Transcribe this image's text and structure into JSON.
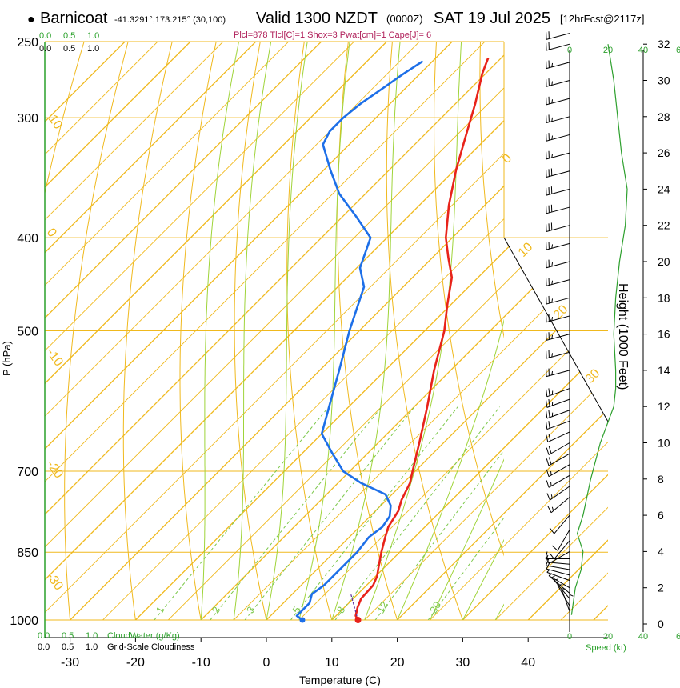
{
  "header": {
    "bullet": "●",
    "station": "Barnicoat",
    "coords": "-41.3291°,173.215° (30,100)",
    "valid": "Valid 1300 NZDT",
    "zulu": "(0000Z)",
    "date": "SAT 19 Jul 2025",
    "forecast": "[12hrFcst@2117z]",
    "indices": "Plcl=878 Tlcl[C]=1 Shox=3 Pwat[cm]=1 Cape[J]= 6"
  },
  "colors": {
    "temperature": "#e8231a",
    "dewpoint": "#1d6fe8",
    "isotherm": "#f0b91e",
    "moist_adiabat": "#9fd43a",
    "mixing_ratio": "#7cc84a",
    "green_text": "#2aa12a",
    "indices": "#b0205a",
    "wind_speed": "#2ea02e"
  },
  "chart_data": {
    "type": "line",
    "title": "Skew-T log-P sounding",
    "xlabel": "Temperature (C)",
    "ylabel": "P (hPa)",
    "y2label": "Height (1000 Feet)",
    "xlim": [
      -35,
      52
    ],
    "ylim_hpa": [
      1000,
      250
    ],
    "x_ticks": [
      "-30",
      "-20",
      "-10",
      "0",
      "10",
      "20",
      "30",
      "40"
    ],
    "x_tick_values": [
      -30,
      -20,
      -10,
      0,
      10,
      20,
      30,
      40
    ],
    "y_ticks": [
      "1000",
      "850",
      "700",
      "500",
      "400",
      "300",
      "250"
    ],
    "y_tick_values": [
      1000,
      850,
      700,
      500,
      400,
      300,
      250
    ],
    "height_ticks": [
      "0",
      "2",
      "4",
      "6",
      "8",
      "10",
      "12",
      "14",
      "16",
      "18",
      "20",
      "22",
      "24",
      "26",
      "28",
      "30",
      "32"
    ],
    "isotherm_labels": [
      "10",
      "0",
      "-10",
      "-20",
      "-30",
      "0",
      "10",
      "20",
      "30"
    ],
    "mixing_ratio_labels": [
      "1",
      "2",
      "3",
      "5",
      "8",
      "12",
      "20"
    ],
    "cloud_top_scale": [
      "0.0",
      "0.5",
      "1.0"
    ],
    "cloud_top_scale_black": [
      "0.0",
      "0.5",
      "1.0"
    ],
    "cloudwater_label": "CloudWater (g/Kg)",
    "cloudwater_ticks": [
      "0.0",
      "0.5",
      "1.0"
    ],
    "cloudiness_label": "Grid-Scale Cloudiness",
    "cloudiness_ticks": [
      "0.0",
      "0.5",
      "1.0"
    ],
    "speed_label": "Speed (kt)",
    "speed_ticks": [
      "0",
      "20",
      "40",
      "6"
    ],
    "series": [
      {
        "name": "Temperature",
        "pressure_hpa": [
          1000,
          990,
          970,
          950,
          920,
          900,
          880,
          850,
          820,
          800,
          770,
          750,
          720,
          700,
          650,
          600,
          550,
          500,
          470,
          440,
          420,
          400,
          370,
          340,
          310,
          290,
          270,
          260
        ],
        "temp_c": [
          14.0,
          13.0,
          12.0,
          11.2,
          11.0,
          10.2,
          9.0,
          7.2,
          5.5,
          4.4,
          3.5,
          2.3,
          1.0,
          -0.4,
          -4.0,
          -8.0,
          -12.5,
          -17.0,
          -20.5,
          -24.0,
          -27.5,
          -31.0,
          -35.5,
          -39.8,
          -44.0,
          -47.0,
          -50.5,
          -52.0
        ]
      },
      {
        "name": "Dewpoint",
        "pressure_hpa": [
          1000,
          990,
          960,
          940,
          920,
          880,
          850,
          820,
          800,
          780,
          760,
          740,
          720,
          700,
          670,
          640,
          600,
          550,
          500,
          450,
          430,
          400,
          380,
          360,
          340,
          320,
          310,
          300,
          290,
          280,
          270,
          262
        ],
        "temp_c": [
          5.5,
          4.0,
          4.0,
          3.0,
          3.5,
          3.5,
          3.5,
          3.0,
          3.5,
          3.0,
          1.5,
          -1.0,
          -6.5,
          -11.0,
          -15.5,
          -20.0,
          -23.0,
          -27.0,
          -31.5,
          -36.0,
          -39.5,
          -42.5,
          -48.0,
          -54.0,
          -59.0,
          -64.0,
          -65.0,
          -65.0,
          -64.5,
          -63.5,
          -62.5,
          -61.5
        ]
      },
      {
        "name": "Wind speed",
        "height_kft": [
          0.5,
          2,
          3,
          4,
          5,
          6,
          8,
          10,
          12,
          13,
          14,
          16,
          18,
          20,
          22,
          24,
          26,
          28,
          30,
          32
        ],
        "speed_kt": [
          1,
          3,
          6,
          7,
          4,
          7,
          11,
          16,
          23,
          24,
          24,
          23,
          24,
          26,
          29,
          30,
          27,
          25,
          23,
          20
        ]
      }
    ],
    "wind_barbs": [
      {
        "height_kft": 0.3,
        "direction_deg": 180,
        "speed_kt": 3
      },
      {
        "height_kft": 0.7,
        "direction_deg": 200,
        "speed_kt": 5
      },
      {
        "height_kft": 1.0,
        "direction_deg": 210,
        "speed_kt": 5
      },
      {
        "height_kft": 1.4,
        "direction_deg": 220,
        "speed_kt": 5
      },
      {
        "height_kft": 1.7,
        "direction_deg": 230,
        "speed_kt": 5
      },
      {
        "height_kft": 2.0,
        "direction_deg": 240,
        "speed_kt": 5
      },
      {
        "height_kft": 2.4,
        "direction_deg": 250,
        "speed_kt": 5
      },
      {
        "height_kft": 2.7,
        "direction_deg": 255,
        "speed_kt": 10
      },
      {
        "height_kft": 3.0,
        "direction_deg": 260,
        "speed_kt": 10
      },
      {
        "height_kft": 3.3,
        "direction_deg": 265,
        "speed_kt": 10
      },
      {
        "height_kft": 3.6,
        "direction_deg": 270,
        "speed_kt": 10
      },
      {
        "height_kft": 4.0,
        "direction_deg": 300,
        "speed_kt": 10
      },
      {
        "height_kft": 4.6,
        "direction_deg": 320,
        "speed_kt": 10
      },
      {
        "height_kft": 5.2,
        "direction_deg": 330,
        "speed_kt": 10
      },
      {
        "height_kft": 6.0,
        "direction_deg": 320,
        "speed_kt": 10
      },
      {
        "height_kft": 7.0,
        "direction_deg": 310,
        "speed_kt": 15
      },
      {
        "height_kft": 7.6,
        "direction_deg": 305,
        "speed_kt": 15
      },
      {
        "height_kft": 8.2,
        "direction_deg": 300,
        "speed_kt": 15
      },
      {
        "height_kft": 8.8,
        "direction_deg": 300,
        "speed_kt": 15
      },
      {
        "height_kft": 9.4,
        "direction_deg": 300,
        "speed_kt": 20
      },
      {
        "height_kft": 10.0,
        "direction_deg": 300,
        "speed_kt": 20
      },
      {
        "height_kft": 10.6,
        "direction_deg": 295,
        "speed_kt": 20
      },
      {
        "height_kft": 11.2,
        "direction_deg": 290,
        "speed_kt": 20
      },
      {
        "height_kft": 11.8,
        "direction_deg": 290,
        "speed_kt": 25
      },
      {
        "height_kft": 12.4,
        "direction_deg": 290,
        "speed_kt": 25
      },
      {
        "height_kft": 13.0,
        "direction_deg": 290,
        "speed_kt": 25
      },
      {
        "height_kft": 14.0,
        "direction_deg": 285,
        "speed_kt": 25
      },
      {
        "height_kft": 15.0,
        "direction_deg": 285,
        "speed_kt": 25
      },
      {
        "height_kft": 16.0,
        "direction_deg": 285,
        "speed_kt": 25
      },
      {
        "height_kft": 17.0,
        "direction_deg": 285,
        "speed_kt": 25
      },
      {
        "height_kft": 18.0,
        "direction_deg": 285,
        "speed_kt": 25
      },
      {
        "height_kft": 19.0,
        "direction_deg": 285,
        "speed_kt": 25
      },
      {
        "height_kft": 20.0,
        "direction_deg": 285,
        "speed_kt": 25
      },
      {
        "height_kft": 21.0,
        "direction_deg": 285,
        "speed_kt": 25
      },
      {
        "height_kft": 22.0,
        "direction_deg": 285,
        "speed_kt": 30
      },
      {
        "height_kft": 23.0,
        "direction_deg": 285,
        "speed_kt": 30
      },
      {
        "height_kft": 24.0,
        "direction_deg": 285,
        "speed_kt": 30
      },
      {
        "height_kft": 25.0,
        "direction_deg": 285,
        "speed_kt": 30
      },
      {
        "height_kft": 26.0,
        "direction_deg": 285,
        "speed_kt": 25
      },
      {
        "height_kft": 27.0,
        "direction_deg": 285,
        "speed_kt": 25
      },
      {
        "height_kft": 28.0,
        "direction_deg": 285,
        "speed_kt": 25
      },
      {
        "height_kft": 29.0,
        "direction_deg": 285,
        "speed_kt": 25
      },
      {
        "height_kft": 30.0,
        "direction_deg": 285,
        "speed_kt": 25
      },
      {
        "height_kft": 31.0,
        "direction_deg": 285,
        "speed_kt": 25
      },
      {
        "height_kft": 32.0,
        "direction_deg": 285,
        "speed_kt": 20
      },
      {
        "height_kft": 32.6,
        "direction_deg": 285,
        "speed_kt": 20
      }
    ]
  }
}
